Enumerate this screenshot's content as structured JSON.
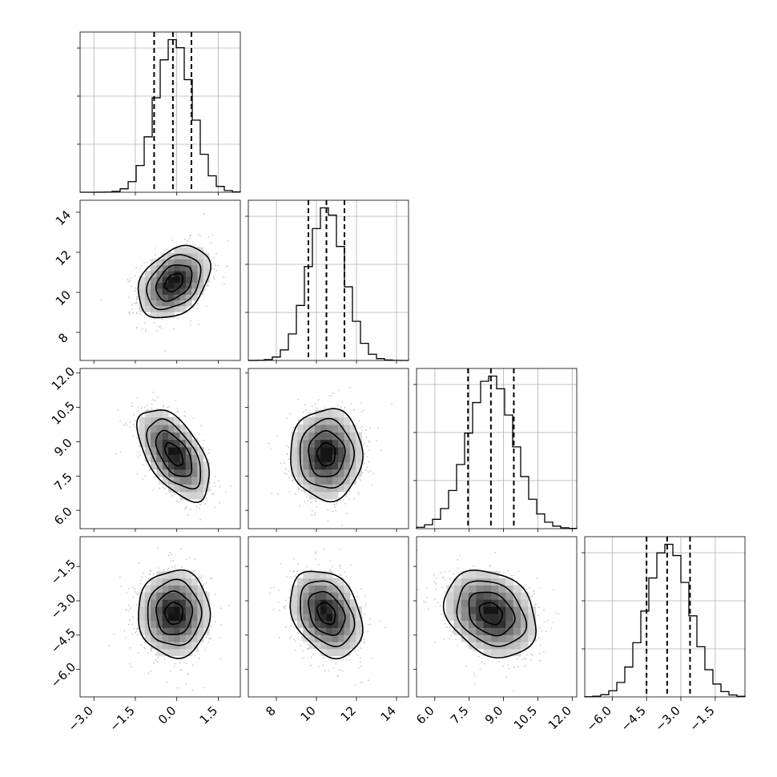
{
  "chart_data": {
    "type": "corner",
    "n_params": 4,
    "params": [
      {
        "name": "",
        "mean": -0.1,
        "std": 0.65,
        "range": [
          -3.5,
          2.3
        ],
        "ticks": [
          -3.0,
          -1.5,
          0.0,
          1.5
        ],
        "tick_labels": [
          "−3.0",
          "−1.5",
          "0.0",
          "1.5"
        ],
        "quantiles": [
          -0.82,
          -0.14,
          0.53
        ]
      },
      {
        "name": "",
        "mean": 10.5,
        "std": 0.9,
        "range": [
          6.6,
          14.6
        ],
        "ticks": [
          8,
          10,
          12,
          14
        ],
        "tick_labels": [
          "8",
          "10",
          "12",
          "14"
        ],
        "quantiles": [
          9.6,
          10.5,
          11.4
        ]
      },
      {
        "name": "",
        "mean": 8.45,
        "std": 1.0,
        "range": [
          5.2,
          12.2
        ],
        "ticks": [
          6.0,
          7.5,
          9.0,
          10.5,
          12.0
        ],
        "tick_labels": [
          "6.0",
          "7.5",
          "9.0",
          "10.5",
          "12.0"
        ],
        "quantiles": [
          7.45,
          8.45,
          9.45
        ]
      },
      {
        "name": "",
        "mean": -3.55,
        "std": 0.95,
        "range": [
          -7.2,
          -0.2
        ],
        "ticks": [
          -6.0,
          -4.5,
          -3.0,
          -1.5
        ],
        "tick_labels": [
          "−6.0",
          "−4.5",
          "−3.0",
          "−1.5"
        ],
        "quantiles": [
          -4.5,
          -3.6,
          -2.6
        ]
      }
    ],
    "correlations": [
      {
        "i": 1,
        "j": 0,
        "rho": 0.35
      },
      {
        "i": 2,
        "j": 0,
        "rho": -0.55
      },
      {
        "i": 2,
        "j": 1,
        "rho": 0.0
      },
      {
        "i": 3,
        "j": 0,
        "rho": 0.0
      },
      {
        "i": 3,
        "j": 1,
        "rho": -0.3
      },
      {
        "i": 3,
        "j": 2,
        "rho": -0.25
      }
    ],
    "contour_levels_sigma": [
      0.5,
      1.0,
      1.5,
      2.0
    ],
    "histogram_bins": 20,
    "grid": true,
    "quantile_style": "dashed"
  }
}
